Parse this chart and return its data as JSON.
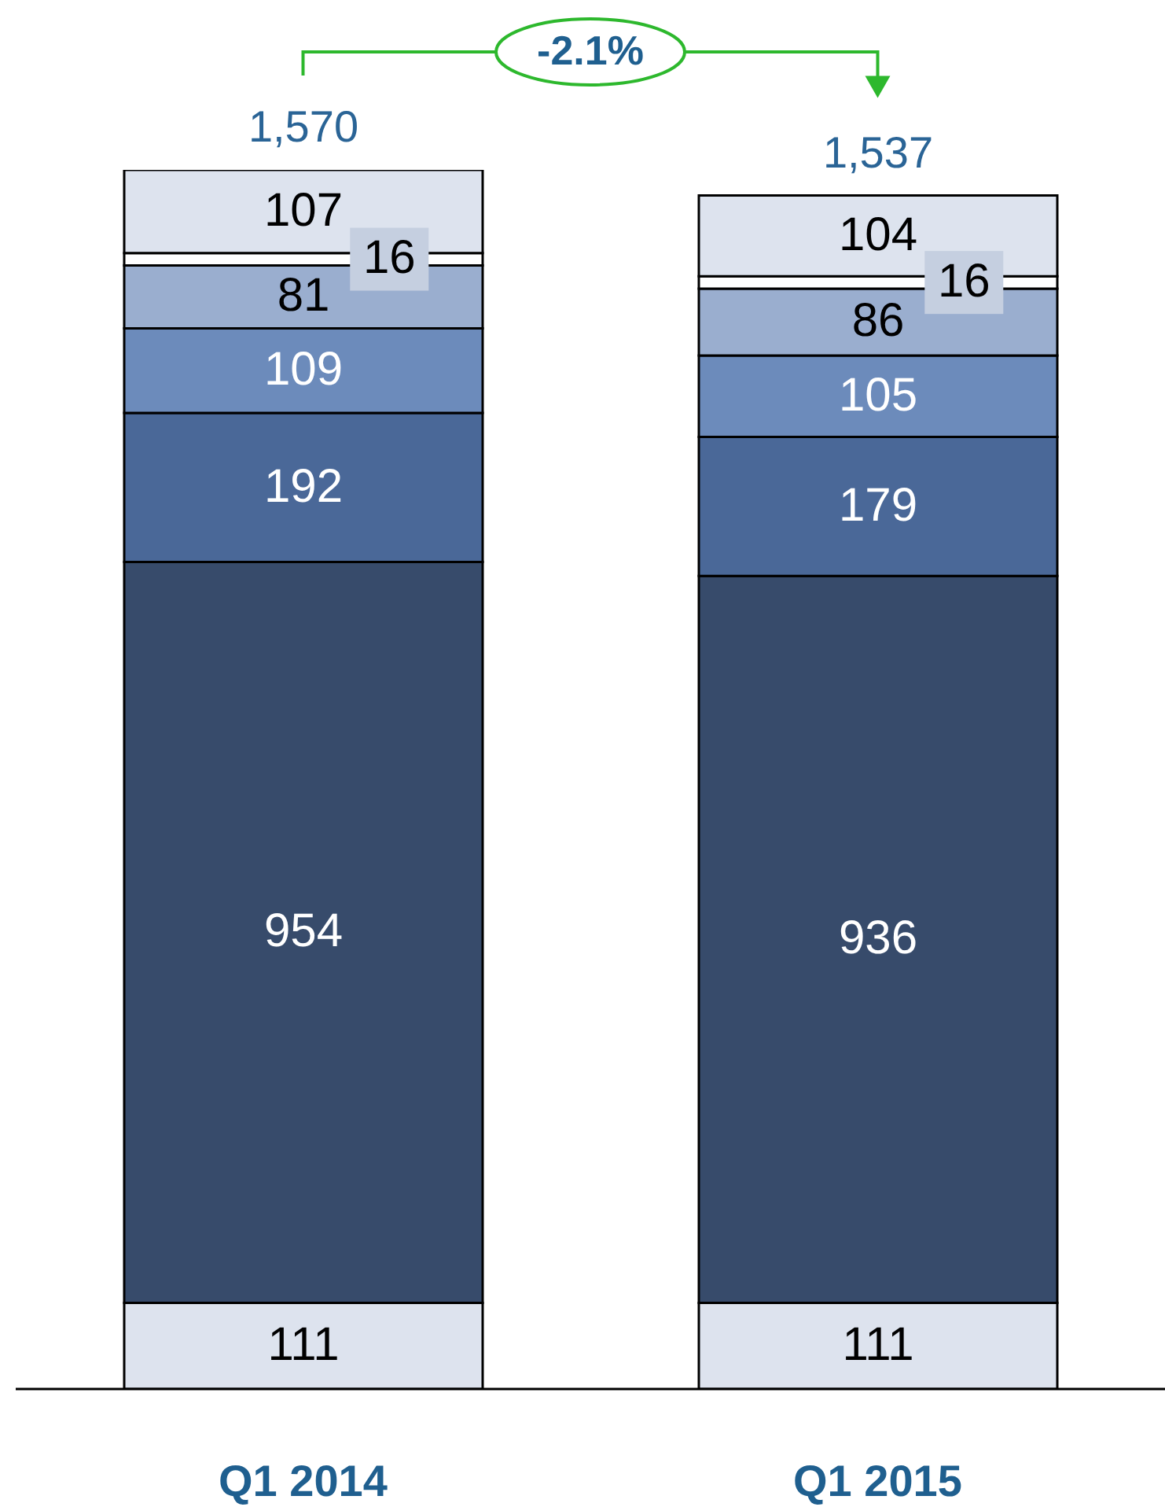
{
  "chart_data": {
    "type": "bar",
    "stacked": true,
    "data_labels": true,
    "categories": [
      "Q1 2014",
      "Q1 2015"
    ],
    "series": [
      {
        "color": "#dde3ee",
        "values": [
          111,
          111
        ]
      },
      {
        "color": "#374b6b",
        "values": [
          954,
          936
        ]
      },
      {
        "color": "#4a6898",
        "values": [
          192,
          179
        ]
      },
      {
        "color": "#6c8bbb",
        "values": [
          109,
          105
        ]
      },
      {
        "color": "#9aaecf",
        "values": [
          81,
          86
        ]
      },
      {
        "color": "#ffffff",
        "values": [
          16,
          16
        ]
      },
      {
        "color": "#dde3ee",
        "values": [
          107,
          104
        ]
      }
    ],
    "totals": [
      "1,570",
      "1,537"
    ],
    "annotations": [
      "-2.1%"
    ]
  }
}
